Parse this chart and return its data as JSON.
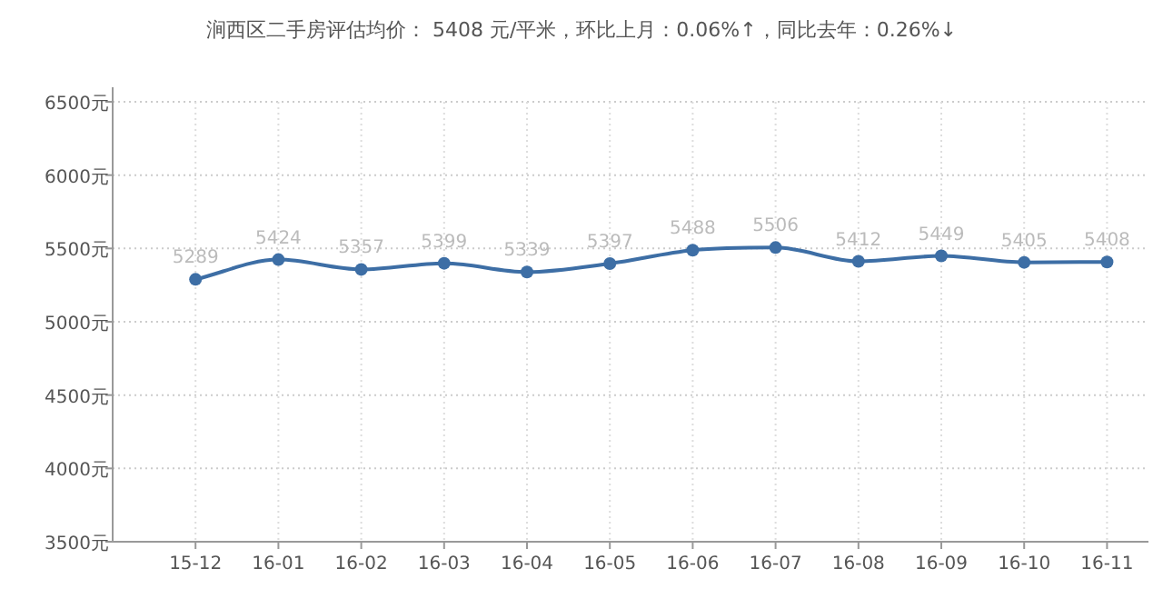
{
  "chart_data": {
    "type": "line",
    "title": "涧西区二手房评估均价： 5408 元/平米，环比上月：0.06%↑，同比去年：0.26%↓",
    "categories": [
      "15-12",
      "16-01",
      "16-02",
      "16-03",
      "16-04",
      "16-05",
      "16-06",
      "16-07",
      "16-08",
      "16-09",
      "16-10",
      "16-11"
    ],
    "series": [
      {
        "color": "#3d6ea5",
        "values": [
          5289,
          5424,
          5357,
          5399,
          5339,
          5397,
          5488,
          5506,
          5412,
          5449,
          5405,
          5408
        ]
      }
    ],
    "ylim": [
      3500,
      6500
    ],
    "yticks": [
      {
        "value": 3500,
        "label": "3500元"
      },
      {
        "value": 4000,
        "label": "4000元"
      },
      {
        "value": 4500,
        "label": "4500元"
      },
      {
        "value": 5000,
        "label": "5000元"
      },
      {
        "value": 5500,
        "label": "5500元"
      },
      {
        "value": 6000,
        "label": "6000元"
      },
      {
        "value": 6500,
        "label": "6500元"
      }
    ],
    "grid": true,
    "data_labels": true,
    "marker": "circle",
    "line_style": "solid"
  }
}
